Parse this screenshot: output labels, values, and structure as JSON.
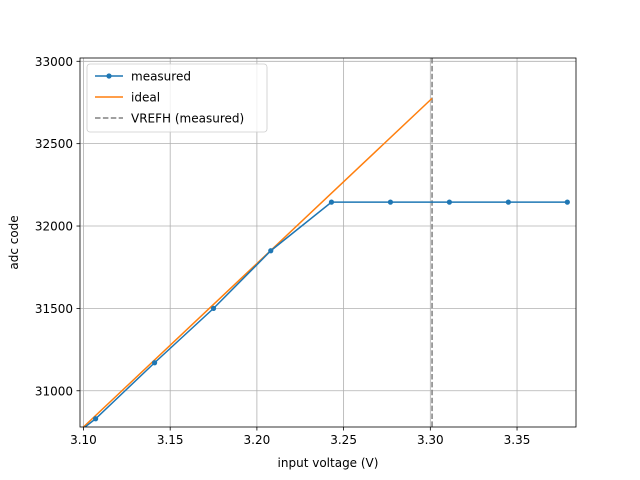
{
  "chart_data": {
    "type": "line",
    "title": "",
    "xlabel": "input voltage (V)",
    "ylabel": "adc code",
    "xlim": [
      3.098,
      3.384
    ],
    "ylim": [
      30780,
      33020
    ],
    "xticks": [
      3.1,
      3.15,
      3.2,
      3.25,
      3.3,
      3.35
    ],
    "xtick_labels": [
      "3.10",
      "3.15",
      "3.20",
      "3.25",
      "3.30",
      "3.35"
    ],
    "yticks": [
      31000,
      31500,
      32000,
      32500,
      33000
    ],
    "ytick_labels": [
      "31000",
      "31500",
      "32000",
      "32500",
      "33000"
    ],
    "grid": true,
    "legend_position": "top-left",
    "series": [
      {
        "name": "measured",
        "color": "#1f77b4",
        "marker": "circle",
        "x": [
          3.096,
          3.107,
          3.141,
          3.175,
          3.208,
          3.243,
          3.277,
          3.311,
          3.345,
          3.379
        ],
        "y": [
          30740,
          30830,
          31170,
          31500,
          31850,
          32145,
          32145,
          32145,
          32145,
          32145
        ]
      },
      {
        "name": "ideal",
        "color": "#ff7f0e",
        "marker": "none",
        "x": [
          3.099,
          3.301
        ],
        "y": [
          30770,
          32775
        ]
      }
    ],
    "vlines": [
      {
        "name": "VREFH (measured)",
        "x": 3.301,
        "color": "#808080",
        "style": "dashed"
      }
    ]
  }
}
